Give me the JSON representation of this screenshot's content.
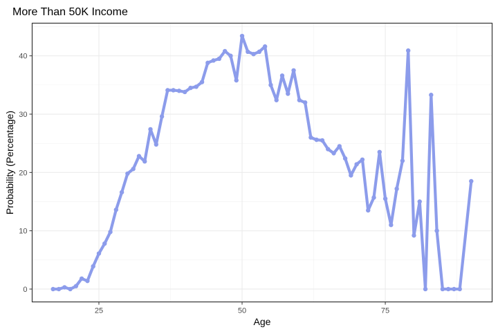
{
  "chart_data": {
    "type": "line",
    "title": "More Than 50K Income",
    "xlabel": "Age",
    "ylabel": "Probability (Percentage)",
    "xlim": [
      13.35,
      93.65
    ],
    "ylim": [
      -2.2,
      45.6
    ],
    "x_ticks": [
      25,
      50,
      75
    ],
    "x_tick_labels": [
      "25",
      "50",
      "75"
    ],
    "y_ticks": [
      0,
      10,
      20,
      30,
      40
    ],
    "y_tick_labels": [
      "0",
      "10",
      "20",
      "30",
      "40"
    ],
    "grid": true,
    "legend": "none",
    "series": [
      {
        "color": "#8c9ceb",
        "x": [
          17,
          18,
          19,
          20,
          21,
          22,
          23,
          24,
          25,
          26,
          27,
          28,
          29,
          30,
          31,
          32,
          33,
          34,
          35,
          36,
          37,
          38,
          39,
          40,
          41,
          42,
          43,
          44,
          45,
          46,
          47,
          48,
          49,
          50,
          51,
          52,
          53,
          54,
          55,
          56,
          57,
          58,
          59,
          60,
          61,
          62,
          63,
          64,
          65,
          66,
          67,
          68,
          69,
          70,
          71,
          72,
          73,
          74,
          75,
          76,
          77,
          78,
          79,
          80,
          81,
          82,
          83,
          84,
          85,
          86,
          87,
          88,
          90
        ],
        "y": [
          0.0,
          0.0,
          0.3,
          0.0,
          0.5,
          1.8,
          1.4,
          3.9,
          6.1,
          7.8,
          9.8,
          13.6,
          16.6,
          19.8,
          20.6,
          22.8,
          21.9,
          27.4,
          24.8,
          29.6,
          34.1,
          34.1,
          34.0,
          33.8,
          34.5,
          34.7,
          35.5,
          38.8,
          39.2,
          39.5,
          40.8,
          40.0,
          35.8,
          43.4,
          40.7,
          40.3,
          40.7,
          41.6,
          35.0,
          32.4,
          36.6,
          33.5,
          37.5,
          32.4,
          32.0,
          26.0,
          25.6,
          25.5,
          24.0,
          23.3,
          24.5,
          22.4,
          19.5,
          21.4,
          22.2,
          13.5,
          15.7,
          23.5,
          15.5,
          11.0,
          17.2,
          22.0,
          40.9,
          9.2,
          15.0,
          0.0,
          33.3,
          10.0,
          0.0,
          0.0,
          0.0,
          0.0,
          18.5
        ]
      }
    ]
  }
}
